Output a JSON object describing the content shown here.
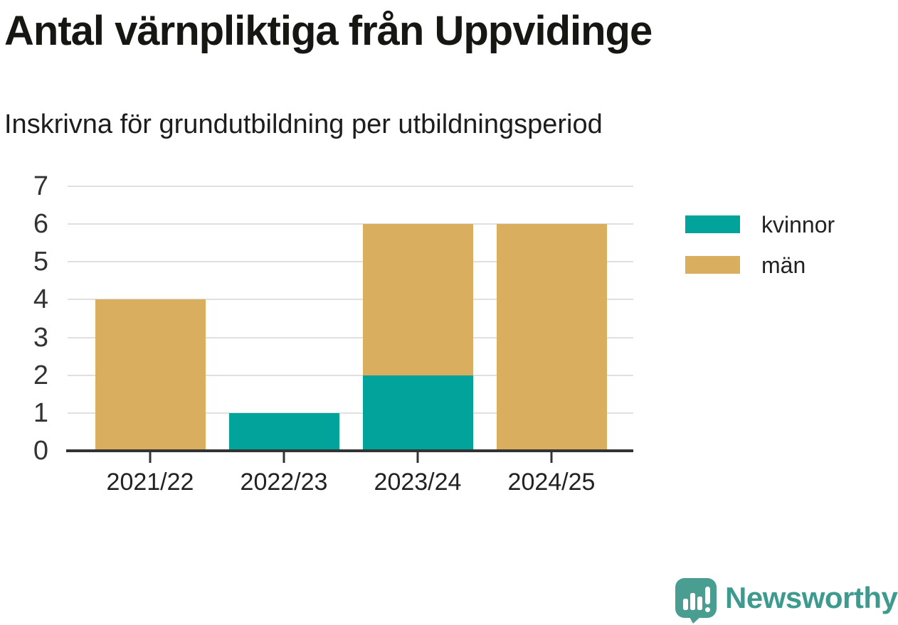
{
  "chart_data": {
    "type": "bar",
    "stacked": true,
    "title": "Antal värnpliktiga från Uppvidinge",
    "subtitle": "Inskrivna för grundutbildning per utbildningsperiod",
    "categories": [
      "2021/22",
      "2022/23",
      "2023/24",
      "2024/25"
    ],
    "series": [
      {
        "name": "kvinnor",
        "color": "#01A39A",
        "values": [
          0,
          1,
          2,
          0
        ]
      },
      {
        "name": "män",
        "color": "#D9AE5F",
        "values": [
          4,
          0,
          4,
          6
        ]
      }
    ],
    "ylim": [
      0,
      7
    ],
    "yticks": [
      0,
      1,
      2,
      3,
      4,
      5,
      6,
      7
    ],
    "grid": true,
    "grid_color": "#e0e0e0",
    "axis_color": "#333333",
    "tick_label_color": "#333333",
    "legend_position": "right"
  },
  "branding": {
    "logo_text": "Newsworthy",
    "logo_color": "#3D9A8E",
    "logo_icon": "speech-bubble-bar-chart-exclamation",
    "logo_icon_color": "#4A9E91"
  }
}
